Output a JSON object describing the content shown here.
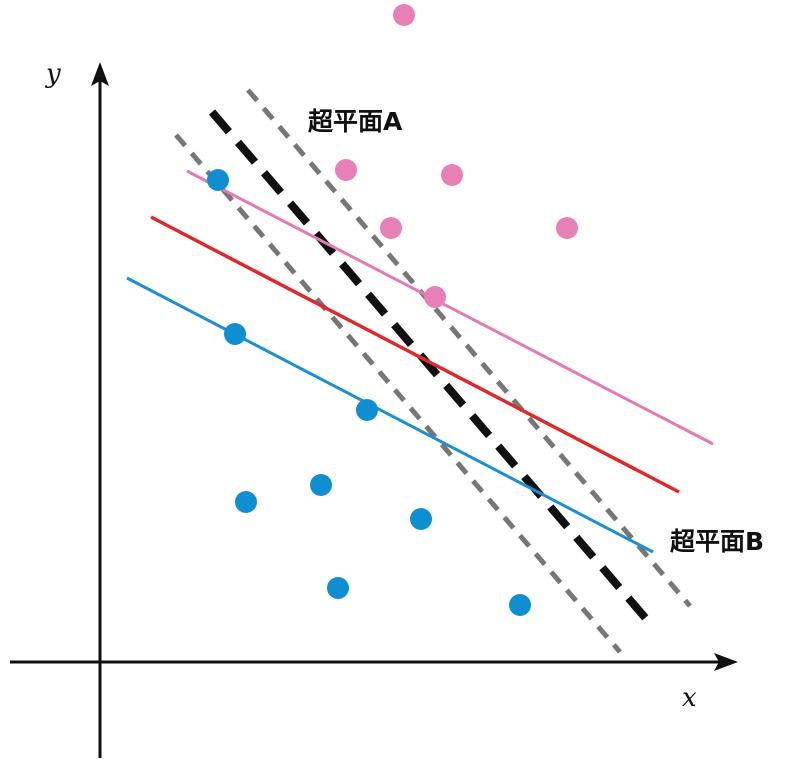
{
  "axes": {
    "x_label": "x",
    "y_label": "y"
  },
  "labels": {
    "hyperplane_a": "超平面A",
    "hyperplane_b": "超平面B"
  },
  "colors": {
    "class_pink": "#e77fb8",
    "class_blue": "#0f8fd2",
    "separator_red": "#e0282a",
    "margin_pink": "#e37ab6",
    "margin_blue": "#1c8fd0",
    "dashed_black": "#111111",
    "dashed_gray": "#777777",
    "axis": "#111111"
  }
}
